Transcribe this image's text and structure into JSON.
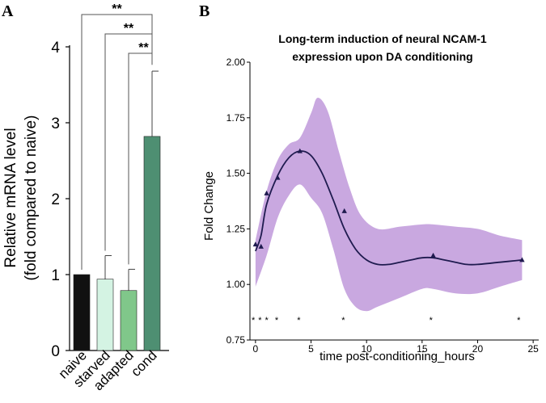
{
  "chart_data": [
    {
      "panel": "A",
      "type": "bar",
      "ylabel": "Relative mRNA level",
      "ylabel2": "(fold compared to naive)",
      "ylim": [
        0,
        4
      ],
      "yticks": [
        0,
        1,
        2,
        3,
        4
      ],
      "categories": [
        "naive",
        "starved",
        "adapted",
        "cond"
      ],
      "values": [
        1.0,
        0.94,
        0.79,
        2.82
      ],
      "errors": [
        0.0,
        0.31,
        0.28,
        0.86
      ],
      "colors": [
        "#111111",
        "#d4f3e3",
        "#80c78a",
        "#4e8f72"
      ],
      "significance": [
        {
          "from": "naive",
          "to": "cond",
          "label": "**"
        },
        {
          "from": "starved",
          "to": "cond",
          "label": "**"
        },
        {
          "from": "adapted",
          "to": "cond",
          "label": "**"
        }
      ]
    },
    {
      "panel": "B",
      "type": "line",
      "title": [
        "Long-term induction of neural NCAM-1",
        "expression upon DA conditioning"
      ],
      "xlabel": "time post-conditioning_hours",
      "ylabel": "Fold Change",
      "xlim": [
        -0.5,
        25.5
      ],
      "ylim": [
        0.75,
        2.0
      ],
      "xticks": [
        0,
        5,
        10,
        15,
        20,
        25
      ],
      "yticks": [
        "0.75",
        "1.00",
        "1.25",
        "1.50",
        "1.75",
        "2.00"
      ],
      "points": [
        {
          "x": 0,
          "y": 1.18
        },
        {
          "x": 0.5,
          "y": 1.17
        },
        {
          "x": 1,
          "y": 1.41
        },
        {
          "x": 2,
          "y": 1.48
        },
        {
          "x": 4,
          "y": 1.6
        },
        {
          "x": 8,
          "y": 1.33
        },
        {
          "x": 16,
          "y": 1.13
        },
        {
          "x": 24,
          "y": 1.11
        }
      ],
      "fit_curve": [
        {
          "x": 0,
          "y": 1.15
        },
        {
          "x": 0.5,
          "y": 1.22
        },
        {
          "x": 1,
          "y": 1.36
        },
        {
          "x": 2,
          "y": 1.49
        },
        {
          "x": 3,
          "y": 1.57
        },
        {
          "x": 4,
          "y": 1.6
        },
        {
          "x": 5,
          "y": 1.58
        },
        {
          "x": 6,
          "y": 1.5
        },
        {
          "x": 7,
          "y": 1.38
        },
        {
          "x": 8,
          "y": 1.25
        },
        {
          "x": 9,
          "y": 1.16
        },
        {
          "x": 10,
          "y": 1.11
        },
        {
          "x": 11,
          "y": 1.09
        },
        {
          "x": 12,
          "y": 1.09
        },
        {
          "x": 13,
          "y": 1.1
        },
        {
          "x": 14,
          "y": 1.11
        },
        {
          "x": 15,
          "y": 1.12
        },
        {
          "x": 16,
          "y": 1.12
        },
        {
          "x": 17,
          "y": 1.11
        },
        {
          "x": 18,
          "y": 1.1
        },
        {
          "x": 19,
          "y": 1.09
        },
        {
          "x": 20,
          "y": 1.09
        },
        {
          "x": 22,
          "y": 1.1
        },
        {
          "x": 24,
          "y": 1.11
        }
      ],
      "band_upper": [
        {
          "x": 0,
          "y": 1.2
        },
        {
          "x": 1,
          "y": 1.42
        },
        {
          "x": 2,
          "y": 1.56
        },
        {
          "x": 3,
          "y": 1.63
        },
        {
          "x": 4,
          "y": 1.66
        },
        {
          "x": 5,
          "y": 1.77
        },
        {
          "x": 5.6,
          "y": 1.84
        },
        {
          "x": 6.5,
          "y": 1.78
        },
        {
          "x": 7.5,
          "y": 1.6
        },
        {
          "x": 8.5,
          "y": 1.43
        },
        {
          "x": 9.5,
          "y": 1.31
        },
        {
          "x": 11,
          "y": 1.25
        },
        {
          "x": 13,
          "y": 1.26
        },
        {
          "x": 15,
          "y": 1.27
        },
        {
          "x": 16,
          "y": 1.27
        },
        {
          "x": 18,
          "y": 1.26
        },
        {
          "x": 20,
          "y": 1.25
        },
        {
          "x": 22,
          "y": 1.22
        },
        {
          "x": 24,
          "y": 1.2
        }
      ],
      "band_lower": [
        {
          "x": 24,
          "y": 1.02
        },
        {
          "x": 22,
          "y": 0.99
        },
        {
          "x": 20,
          "y": 0.96
        },
        {
          "x": 18,
          "y": 0.96
        },
        {
          "x": 16,
          "y": 0.98
        },
        {
          "x": 15,
          "y": 0.98
        },
        {
          "x": 13,
          "y": 0.94
        },
        {
          "x": 11,
          "y": 0.9
        },
        {
          "x": 10,
          "y": 0.88
        },
        {
          "x": 9,
          "y": 0.9
        },
        {
          "x": 8,
          "y": 0.98
        },
        {
          "x": 7,
          "y": 1.16
        },
        {
          "x": 6,
          "y": 1.32
        },
        {
          "x": 5,
          "y": 1.39
        },
        {
          "x": 4,
          "y": 1.45
        },
        {
          "x": 3,
          "y": 1.4
        },
        {
          "x": 2,
          "y": 1.3
        },
        {
          "x": 1,
          "y": 1.13
        },
        {
          "x": 0,
          "y": 0.99
        }
      ],
      "significance_markers": [
        {
          "x": -0.2,
          "label": "*"
        },
        {
          "x": 0.4,
          "label": "*"
        },
        {
          "x": 1.0,
          "label": "*"
        },
        {
          "x": 1.9,
          "label": "*"
        },
        {
          "x": 3.9,
          "label": "*"
        },
        {
          "x": 7.9,
          "label": "*"
        },
        {
          "x": 15.8,
          "label": "*"
        },
        {
          "x": 23.7,
          "label": "*"
        }
      ],
      "colors": {
        "band": "#c9a8e0",
        "line": "#1f1b4f",
        "marker": "#1f1b4f"
      }
    }
  ],
  "panel_labels": {
    "a": "A",
    "b": "B"
  }
}
